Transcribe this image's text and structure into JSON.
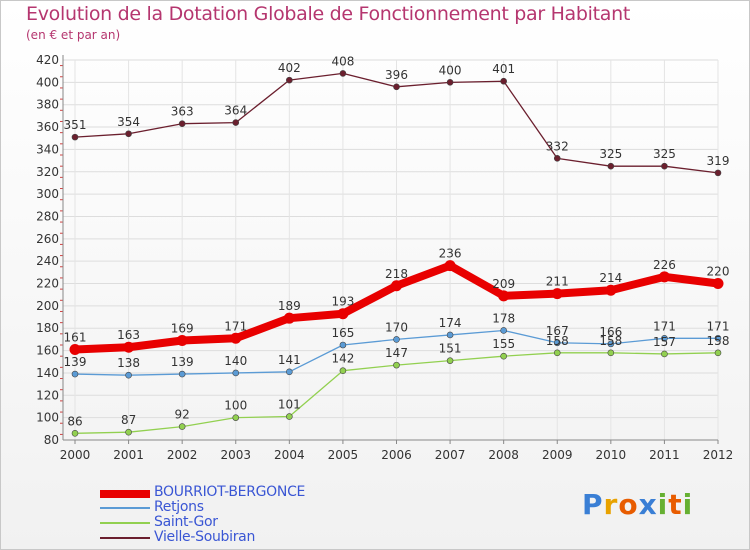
{
  "chart_data": {
    "type": "line",
    "title": "Evolution de la Dotation Globale de Fonctionnement par Habitant",
    "subtitle": "(en € et par an)",
    "xlabel": "",
    "ylabel": "",
    "ylim": [
      80,
      420
    ],
    "ytick_step": 20,
    "categories": [
      "2000",
      "2001",
      "2002",
      "2003",
      "2004",
      "2005",
      "2006",
      "2007",
      "2008",
      "2009",
      "2010",
      "2011",
      "2012"
    ],
    "series": [
      {
        "name": "BOURRIOT-BERGONCE",
        "color": "#e80000",
        "values": [
          161,
          163,
          169,
          171,
          189,
          193,
          218,
          236,
          209,
          211,
          214,
          226,
          220
        ],
        "labels": [
          "161",
          "163",
          "169",
          "171",
          "189",
          "193",
          "218",
          "236",
          "209",
          "211",
          "214",
          "226",
          "220"
        ]
      },
      {
        "name": "Retjons",
        "color": "#5b9bd5",
        "values": [
          139,
          138,
          139,
          140,
          141,
          165,
          170,
          174,
          178,
          167,
          166,
          171,
          171
        ],
        "labels": [
          "139",
          "138",
          "139",
          "140",
          "141",
          "165",
          "170",
          "174",
          "178",
          "167",
          "166",
          "171",
          "171"
        ]
      },
      {
        "name": "Saint-Gor",
        "color": "#92d050",
        "values": [
          86,
          87,
          92,
          100,
          101,
          142,
          147,
          151,
          155,
          158,
          158,
          157,
          158
        ],
        "labels": [
          "86",
          "87",
          "92",
          "100",
          "101",
          "142",
          "147",
          "151",
          "155",
          "158",
          "158",
          "157",
          "158"
        ]
      },
      {
        "name": "Vielle-Soubiran",
        "color": "#6b1f2e",
        "values": [
          351,
          354,
          363,
          364,
          402,
          408,
          396,
          400,
          401,
          332,
          325,
          325,
          319
        ],
        "labels": [
          "351",
          "354",
          "363",
          "364",
          "402",
          "408",
          "396",
          "400",
          "401",
          "332",
          "325",
          "325",
          "319"
        ]
      }
    ]
  },
  "legend": [
    "BOURRIOT-BERGONCE",
    "Retjons",
    "Saint-Gor",
    "Vielle-Soubiran"
  ],
  "logo": {
    "text": "Proxiti",
    "letters": [
      "P",
      "r",
      "o",
      "x",
      "i",
      "t",
      "i"
    ],
    "colors": [
      "#3a7fd5",
      "#e8a200",
      "#e85c00",
      "#3a7fd5",
      "#66b032",
      "#e85c00",
      "#66b032"
    ]
  }
}
